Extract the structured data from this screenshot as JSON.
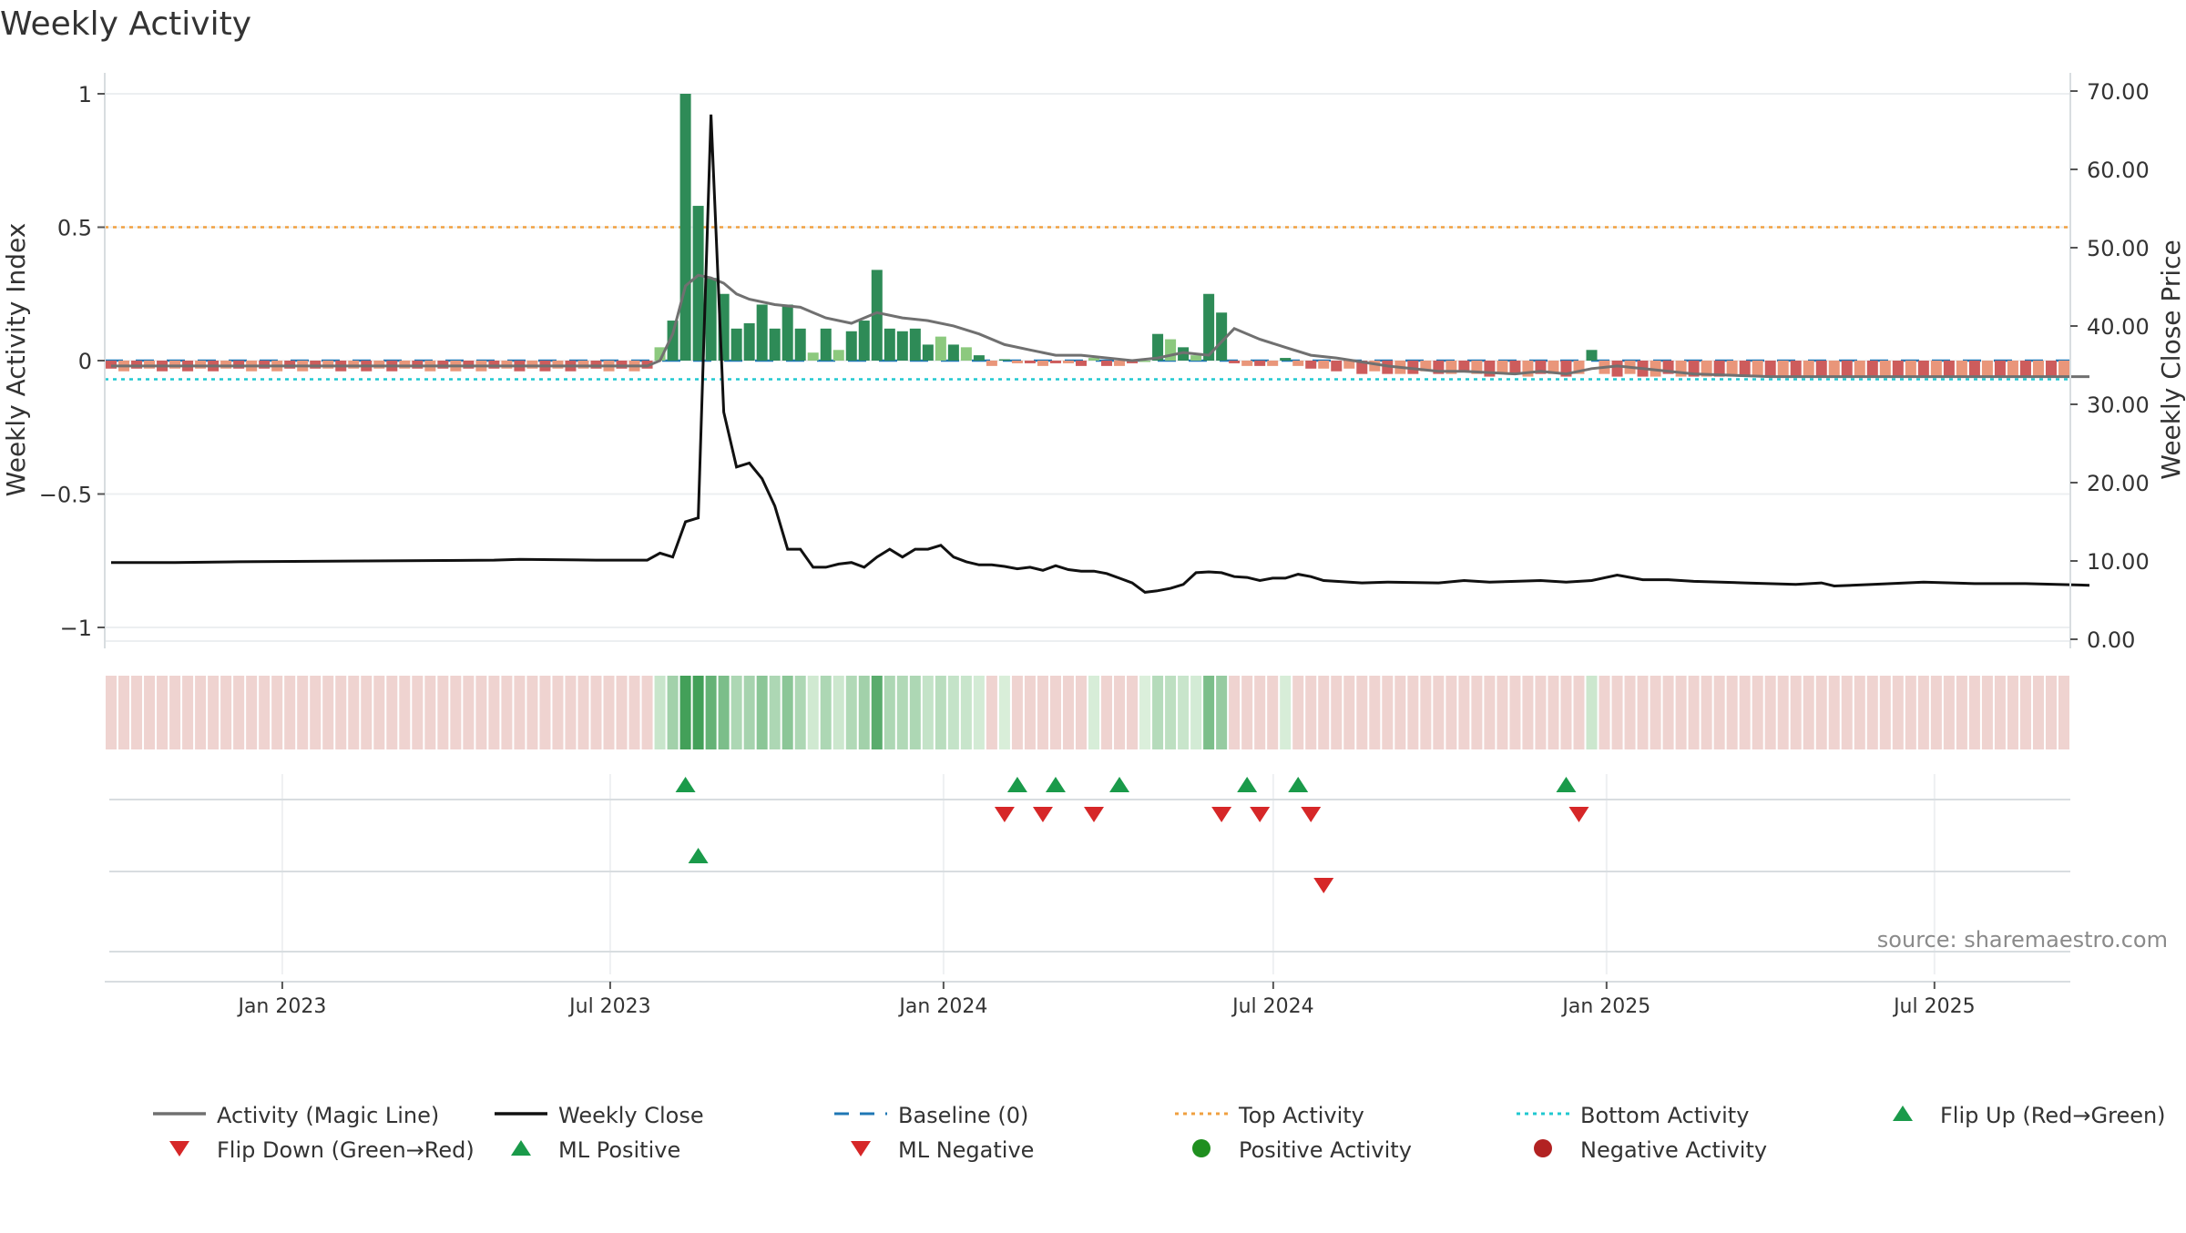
{
  "chart_data": {
    "type": "bar",
    "title": "Weekly Activity",
    "ylabel": "Weekly Activity Index",
    "ylabel_right": "Weekly Close Price",
    "ylim": [
      -1.05,
      1.05
    ],
    "ylim_right": [
      0,
      70
    ],
    "yticks": [
      1,
      0.5,
      0,
      -0.5,
      -1
    ],
    "yticks_labels": [
      "1",
      "0.5",
      "0",
      "−0.5",
      "−1"
    ],
    "yticks_right": [
      "70.00",
      "60.00",
      "50.00",
      "40.00",
      "30.00",
      "20.00",
      "10.00",
      "0.00"
    ],
    "xticks": [
      "Jan 2023",
      "Jul 2023",
      "Jan 2024",
      "Jul 2024",
      "Jan 2025",
      "Jul 2025"
    ],
    "x_start": "2022-09-25",
    "x_end": "2025-09-14",
    "top_activity": 0.5,
    "bottom_activity": -0.07,
    "baseline": 0,
    "source": "source: sharemaestro.com",
    "colors": {
      "pos_strong": "#2e8b57",
      "pos_light": "#8cc97e",
      "neg_strong": "#cd5c5c",
      "neg_light": "#e9967a",
      "magic_line": "#707070",
      "close_line": "#111111",
      "baseline": "#1f77b4",
      "top": "#f0a040",
      "bottom": "#20c8d0",
      "flip_up": "#1a9a4a",
      "flip_down": "#d62728",
      "pos_dot": "#1f8f1f",
      "neg_dot": "#b22222"
    },
    "series": [
      {
        "name": "Activity (Magic Line)",
        "values": [
          [
            0,
            -0.02
          ],
          [
            42,
            -0.02
          ],
          [
            43,
            0.0
          ],
          [
            44,
            0.1
          ],
          [
            45,
            0.28
          ],
          [
            46,
            0.32
          ],
          [
            47,
            0.31
          ],
          [
            48,
            0.29
          ],
          [
            49,
            0.25
          ],
          [
            50,
            0.23
          ],
          [
            52,
            0.21
          ],
          [
            54,
            0.2
          ],
          [
            56,
            0.16
          ],
          [
            58,
            0.14
          ],
          [
            60,
            0.18
          ],
          [
            62,
            0.16
          ],
          [
            64,
            0.15
          ],
          [
            66,
            0.13
          ],
          [
            68,
            0.1
          ],
          [
            70,
            0.06
          ],
          [
            72,
            0.04
          ],
          [
            74,
            0.02
          ],
          [
            76,
            0.02
          ],
          [
            80,
            0.0
          ],
          [
            82,
            0.01
          ],
          [
            84,
            0.03
          ],
          [
            86,
            0.02
          ],
          [
            88,
            0.12
          ],
          [
            90,
            0.08
          ],
          [
            92,
            0.05
          ],
          [
            94,
            0.02
          ],
          [
            96,
            0.01
          ],
          [
            100,
            -0.02
          ],
          [
            104,
            -0.04
          ],
          [
            106,
            -0.04
          ],
          [
            110,
            -0.05
          ],
          [
            112,
            -0.04
          ],
          [
            114,
            -0.05
          ],
          [
            116,
            -0.03
          ],
          [
            118,
            -0.02
          ],
          [
            120,
            -0.03
          ],
          [
            124,
            -0.05
          ],
          [
            130,
            -0.06
          ],
          [
            140,
            -0.06
          ],
          [
            155,
            -0.06
          ]
        ]
      },
      {
        "name": "Weekly Close",
        "values": [
          [
            0,
            9.8
          ],
          [
            5,
            9.8
          ],
          [
            10,
            9.9
          ],
          [
            20,
            10.0
          ],
          [
            30,
            10.1
          ],
          [
            32,
            10.2
          ],
          [
            38,
            10.1
          ],
          [
            42,
            10.1
          ],
          [
            43,
            11.0
          ],
          [
            44,
            10.5
          ],
          [
            45,
            15.0
          ],
          [
            46,
            15.5
          ],
          [
            47,
            67.0
          ],
          [
            48,
            29.0
          ],
          [
            49,
            22.0
          ],
          [
            50,
            22.5
          ],
          [
            51,
            20.5
          ],
          [
            52,
            17.0
          ],
          [
            53,
            11.5
          ],
          [
            54,
            11.5
          ],
          [
            55,
            9.2
          ],
          [
            56,
            9.2
          ],
          [
            57,
            9.6
          ],
          [
            58,
            9.8
          ],
          [
            59,
            9.2
          ],
          [
            60,
            10.5
          ],
          [
            61,
            11.5
          ],
          [
            62,
            10.5
          ],
          [
            63,
            11.5
          ],
          [
            64,
            11.5
          ],
          [
            65,
            12.0
          ],
          [
            66,
            10.5
          ],
          [
            67,
            9.9
          ],
          [
            68,
            9.5
          ],
          [
            69,
            9.5
          ],
          [
            70,
            9.3
          ],
          [
            71,
            9.0
          ],
          [
            72,
            9.2
          ],
          [
            73,
            8.8
          ],
          [
            74,
            9.4
          ],
          [
            75,
            8.9
          ],
          [
            76,
            8.7
          ],
          [
            77,
            8.7
          ],
          [
            78,
            8.4
          ],
          [
            79,
            7.8
          ],
          [
            80,
            7.2
          ],
          [
            81,
            6.0
          ],
          [
            82,
            6.2
          ],
          [
            83,
            6.5
          ],
          [
            84,
            7.0
          ],
          [
            85,
            8.5
          ],
          [
            86,
            8.6
          ],
          [
            87,
            8.5
          ],
          [
            88,
            8.0
          ],
          [
            89,
            7.9
          ],
          [
            90,
            7.5
          ],
          [
            91,
            7.8
          ],
          [
            92,
            7.8
          ],
          [
            93,
            8.3
          ],
          [
            94,
            8.0
          ],
          [
            95,
            7.5
          ],
          [
            96,
            7.4
          ],
          [
            98,
            7.2
          ],
          [
            100,
            7.3
          ],
          [
            104,
            7.2
          ],
          [
            106,
            7.5
          ],
          [
            108,
            7.3
          ],
          [
            110,
            7.4
          ],
          [
            112,
            7.5
          ],
          [
            114,
            7.3
          ],
          [
            116,
            7.5
          ],
          [
            118,
            8.2
          ],
          [
            120,
            7.6
          ],
          [
            122,
            7.6
          ],
          [
            124,
            7.4
          ],
          [
            128,
            7.2
          ],
          [
            132,
            7.0
          ],
          [
            134,
            7.2
          ],
          [
            135,
            6.8
          ],
          [
            138,
            7.0
          ],
          [
            142,
            7.3
          ],
          [
            146,
            7.1
          ],
          [
            150,
            7.1
          ],
          [
            155,
            6.9
          ]
        ]
      }
    ],
    "bar_values": [
      -0.03,
      -0.04,
      -0.03,
      -0.03,
      -0.04,
      -0.03,
      -0.04,
      -0.03,
      -0.04,
      -0.03,
      -0.03,
      -0.04,
      -0.03,
      -0.04,
      -0.03,
      -0.04,
      -0.03,
      -0.03,
      -0.04,
      -0.03,
      -0.04,
      -0.03,
      -0.04,
      -0.03,
      -0.03,
      -0.04,
      -0.03,
      -0.04,
      -0.03,
      -0.04,
      -0.03,
      -0.03,
      -0.04,
      -0.03,
      -0.04,
      -0.03,
      -0.04,
      -0.03,
      -0.03,
      -0.04,
      -0.03,
      -0.04,
      -0.03,
      0.05,
      0.15,
      1.0,
      0.58,
      0.31,
      0.25,
      0.12,
      0.14,
      0.21,
      0.12,
      0.21,
      0.12,
      0.03,
      0.12,
      0.04,
      0.11,
      0.15,
      0.34,
      0.12,
      0.11,
      0.12,
      0.06,
      0.09,
      0.06,
      0.05,
      0.02,
      -0.02,
      0.005,
      -0.01,
      -0.01,
      -0.02,
      -0.01,
      -0.01,
      -0.02,
      0.01,
      -0.02,
      -0.02,
      -0.01,
      0.0,
      0.1,
      0.08,
      0.05,
      0.02,
      0.25,
      0.18,
      -0.01,
      -0.02,
      -0.02,
      -0.02,
      0.01,
      -0.02,
      -0.03,
      -0.03,
      -0.04,
      -0.03,
      -0.05,
      -0.04,
      -0.05,
      -0.05,
      -0.05,
      -0.04,
      -0.05,
      -0.05,
      -0.04,
      -0.05,
      -0.06,
      -0.05,
      -0.05,
      -0.06,
      -0.05,
      -0.05,
      -0.06,
      -0.05,
      0.04,
      -0.05,
      -0.06,
      -0.05,
      -0.06,
      -0.06,
      -0.05,
      -0.06,
      -0.06,
      -0.06,
      -0.06,
      -0.06,
      -0.06,
      -0.06,
      -0.06,
      -0.06,
      -0.06,
      -0.06,
      -0.06,
      -0.06,
      -0.06,
      -0.06,
      -0.06,
      -0.06,
      -0.06,
      -0.06,
      -0.06,
      -0.06,
      -0.06,
      -0.06,
      -0.06,
      -0.06,
      -0.06,
      -0.06,
      -0.06,
      -0.06,
      -0.06,
      -0.06
    ],
    "strip_values": [
      -0.03,
      -0.04,
      -0.03,
      -0.03,
      -0.04,
      -0.03,
      -0.04,
      -0.03,
      -0.04,
      -0.03,
      -0.03,
      -0.04,
      -0.03,
      -0.04,
      -0.03,
      -0.04,
      -0.03,
      -0.03,
      -0.04,
      -0.03,
      -0.04,
      -0.03,
      -0.04,
      -0.03,
      -0.03,
      -0.04,
      -0.03,
      -0.04,
      -0.03,
      -0.04,
      -0.03,
      -0.03,
      -0.04,
      -0.03,
      -0.04,
      -0.03,
      -0.04,
      -0.03,
      -0.03,
      -0.04,
      -0.03,
      -0.04,
      -0.03,
      0.05,
      0.15,
      1.0,
      0.58,
      0.31,
      0.25,
      0.12,
      0.14,
      0.21,
      0.12,
      0.21,
      0.12,
      0.03,
      0.12,
      0.04,
      0.11,
      0.15,
      0.34,
      0.12,
      0.11,
      0.12,
      0.06,
      0.09,
      0.06,
      0.05,
      0.02,
      -0.02,
      0.005,
      -0.01,
      -0.01,
      -0.02,
      -0.01,
      -0.01,
      -0.02,
      0.01,
      -0.02,
      -0.02,
      -0.01,
      0.0,
      0.1,
      0.08,
      0.05,
      0.02,
      0.25,
      0.18,
      -0.01,
      -0.02,
      -0.02,
      -0.02,
      0.01,
      -0.02,
      -0.03,
      -0.03,
      -0.04,
      -0.03,
      -0.05,
      -0.04,
      -0.05,
      -0.05,
      -0.05,
      -0.04,
      -0.05,
      -0.05,
      -0.04,
      -0.05,
      -0.06,
      -0.05,
      -0.05,
      -0.06,
      -0.05,
      -0.05,
      -0.06,
      -0.05,
      0.04,
      -0.05,
      -0.06,
      -0.05,
      -0.06,
      -0.06,
      -0.05,
      -0.06,
      -0.06,
      -0.06,
      -0.06,
      -0.06,
      -0.06,
      -0.06,
      -0.06,
      -0.06,
      -0.06,
      -0.06,
      -0.06,
      -0.06,
      -0.06,
      -0.06,
      -0.06,
      -0.06,
      -0.06,
      -0.06,
      -0.06,
      -0.06,
      -0.06,
      -0.06,
      -0.06,
      -0.06,
      -0.06,
      -0.06,
      -0.06,
      -0.06,
      -0.06,
      -0.06
    ],
    "flip_up": [
      45.5,
      71.5,
      74.5,
      79.5,
      89.5,
      93.5,
      114.5
    ],
    "flip_down": [
      70.5,
      73.5,
      77.5,
      87.5,
      90.5,
      94.5,
      115.5
    ],
    "ml_positive": [
      46.5
    ],
    "ml_negative": [
      95.5
    ],
    "legend": [
      {
        "label": "Activity (Magic Line)",
        "kind": "line",
        "color": "#707070"
      },
      {
        "label": "Weekly Close",
        "kind": "line",
        "color": "#111111"
      },
      {
        "label": "Baseline (0)",
        "kind": "dash",
        "color": "#1f77b4"
      },
      {
        "label": "Top Activity",
        "kind": "dot",
        "color": "#f0a040"
      },
      {
        "label": "Bottom Activity",
        "kind": "dot",
        "color": "#20c8d0"
      },
      {
        "label": "Flip Up (Red→Green)",
        "kind": "tri-up",
        "color": "#1a9a4a"
      },
      {
        "label": "Flip Down (Green→Red)",
        "kind": "tri-down",
        "color": "#d62728"
      },
      {
        "label": "ML Positive",
        "kind": "tri-up",
        "color": "#1a9a4a"
      },
      {
        "label": "ML Negative",
        "kind": "tri-down",
        "color": "#d62728"
      },
      {
        "label": "Positive Activity",
        "kind": "circle",
        "color": "#1f8f1f"
      },
      {
        "label": "Negative Activity",
        "kind": "circle",
        "color": "#b22222"
      }
    ]
  }
}
